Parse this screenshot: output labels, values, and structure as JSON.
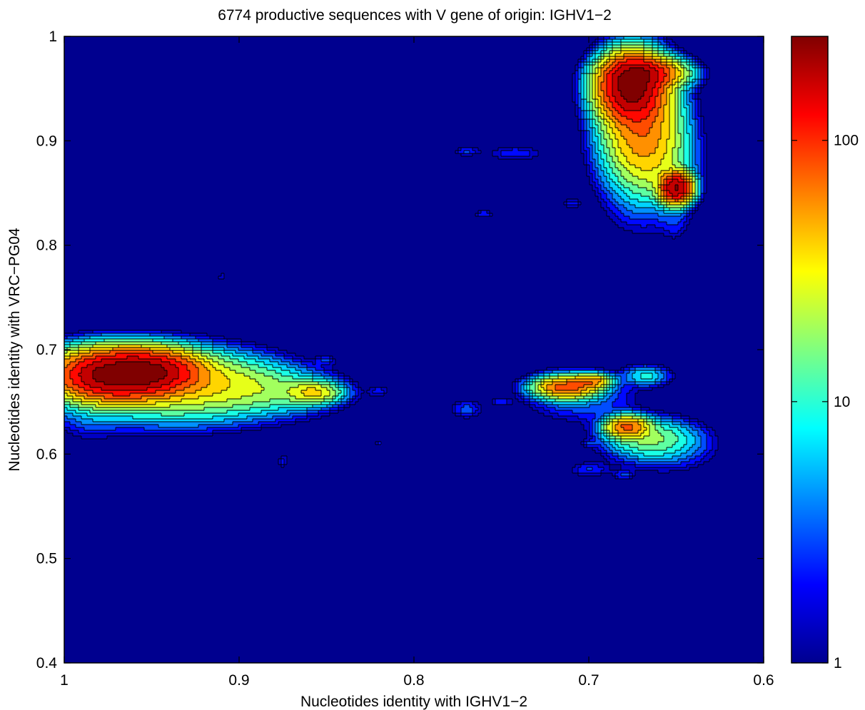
{
  "chart_data": {
    "type": "heatmap",
    "title": "6774 productive sequences with V gene of origin: IGHV1−2",
    "xlabel": "Nucleotides identity with IGHV1−2",
    "ylabel": "Nucleotides identity with VRC−PG04",
    "xlim": [
      1,
      0.6
    ],
    "ylim": [
      0.4,
      1
    ],
    "x_reversed": true,
    "x_ticks": [
      1,
      0.9,
      0.8,
      0.7,
      0.6
    ],
    "x_tick_labels": [
      "1",
      "0.9",
      "0.8",
      "0.7",
      "0.6"
    ],
    "y_ticks": [
      0.4,
      0.5,
      0.6,
      0.7,
      0.8,
      0.9,
      1
    ],
    "y_tick_labels": [
      "0.4",
      "0.5",
      "0.6",
      "0.7",
      "0.8",
      "0.9",
      "1"
    ],
    "colorbar": {
      "scale": "log",
      "range": [
        1,
        250
      ],
      "ticks": [
        1,
        10,
        100
      ],
      "tick_labels": [
        "1",
        "10",
        "100"
      ],
      "colormap": "jet"
    },
    "background_color": "#00008f",
    "grid": false,
    "contour_lines": true,
    "clusters": [
      {
        "x": 0.971,
        "y": 0.676,
        "sx": 0.019,
        "sy": 0.013,
        "peak": 240
      },
      {
        "x": 0.948,
        "y": 0.68,
        "sx": 0.015,
        "sy": 0.011,
        "peak": 120
      },
      {
        "x": 0.935,
        "y": 0.668,
        "sx": 0.028,
        "sy": 0.018,
        "peak": 30
      },
      {
        "x": 0.905,
        "y": 0.666,
        "sx": 0.024,
        "sy": 0.015,
        "peak": 12
      },
      {
        "x": 0.875,
        "y": 0.66,
        "sx": 0.02,
        "sy": 0.012,
        "peak": 9
      },
      {
        "x": 0.857,
        "y": 0.659,
        "sx": 0.009,
        "sy": 0.006,
        "peak": 30
      },
      {
        "x": 0.945,
        "y": 0.64,
        "sx": 0.05,
        "sy": 0.014,
        "peak": 2.2
      },
      {
        "x": 0.985,
        "y": 0.66,
        "sx": 0.012,
        "sy": 0.025,
        "peak": 4
      },
      {
        "x": 0.676,
        "y": 0.951,
        "sx": 0.01,
        "sy": 0.017,
        "peak": 230
      },
      {
        "x": 0.67,
        "y": 0.915,
        "sx": 0.012,
        "sy": 0.03,
        "peak": 60
      },
      {
        "x": 0.667,
        "y": 0.965,
        "sx": 0.012,
        "sy": 0.008,
        "peak": 100
      },
      {
        "x": 0.65,
        "y": 0.855,
        "sx": 0.005,
        "sy": 0.008,
        "peak": 210
      },
      {
        "x": 0.66,
        "y": 0.88,
        "sx": 0.012,
        "sy": 0.025,
        "peak": 12
      },
      {
        "x": 0.675,
        "y": 0.89,
        "sx": 0.014,
        "sy": 0.05,
        "peak": 3
      },
      {
        "x": 0.65,
        "y": 0.825,
        "sx": 0.006,
        "sy": 0.015,
        "peak": 1.8
      },
      {
        "x": 0.713,
        "y": 0.664,
        "sx": 0.01,
        "sy": 0.006,
        "peak": 80
      },
      {
        "x": 0.698,
        "y": 0.67,
        "sx": 0.006,
        "sy": 0.004,
        "peak": 50
      },
      {
        "x": 0.705,
        "y": 0.655,
        "sx": 0.02,
        "sy": 0.015,
        "peak": 4
      },
      {
        "x": 0.678,
        "y": 0.626,
        "sx": 0.007,
        "sy": 0.006,
        "peak": 70
      },
      {
        "x": 0.665,
        "y": 0.615,
        "sx": 0.015,
        "sy": 0.011,
        "peak": 15
      },
      {
        "x": 0.655,
        "y": 0.605,
        "sx": 0.018,
        "sy": 0.015,
        "peak": 3
      },
      {
        "x": 0.667,
        "y": 0.675,
        "sx": 0.008,
        "sy": 0.006,
        "peak": 8
      },
      {
        "x": 0.905,
        "y": 0.888,
        "sx": 0.01,
        "sy": 0.005,
        "peak": 0
      },
      {
        "x": 0.77,
        "y": 0.89,
        "sx": 0.005,
        "sy": 0.003,
        "peak": 2.5
      },
      {
        "x": 0.742,
        "y": 0.888,
        "sx": 0.012,
        "sy": 0.006,
        "peak": 2.2
      },
      {
        "x": 0.76,
        "y": 0.83,
        "sx": 0.004,
        "sy": 0.003,
        "peak": 2.2
      },
      {
        "x": 0.71,
        "y": 0.84,
        "sx": 0.004,
        "sy": 0.003,
        "peak": 2.2
      },
      {
        "x": 0.82,
        "y": 0.66,
        "sx": 0.004,
        "sy": 0.003,
        "peak": 2.2
      },
      {
        "x": 0.77,
        "y": 0.643,
        "sx": 0.006,
        "sy": 0.006,
        "peak": 3
      },
      {
        "x": 0.85,
        "y": 0.69,
        "sx": 0.004,
        "sy": 0.003,
        "peak": 2.2
      },
      {
        "x": 0.875,
        "y": 0.593,
        "sx": 0.002,
        "sy": 0.005,
        "peak": 2.2
      },
      {
        "x": 0.91,
        "y": 0.77,
        "sx": 0.002,
        "sy": 0.002,
        "peak": 2.0
      },
      {
        "x": 0.82,
        "y": 0.61,
        "sx": 0.002,
        "sy": 0.002,
        "peak": 2.0
      },
      {
        "x": 0.7,
        "y": 0.585,
        "sx": 0.008,
        "sy": 0.005,
        "peak": 2.5
      },
      {
        "x": 0.68,
        "y": 0.58,
        "sx": 0.004,
        "sy": 0.003,
        "peak": 2.5
      },
      {
        "x": 0.7,
        "y": 0.61,
        "sx": 0.003,
        "sy": 0.002,
        "peak": 2.0
      },
      {
        "x": 0.75,
        "y": 0.65,
        "sx": 0.004,
        "sy": 0.003,
        "peak": 2.2
      }
    ]
  }
}
